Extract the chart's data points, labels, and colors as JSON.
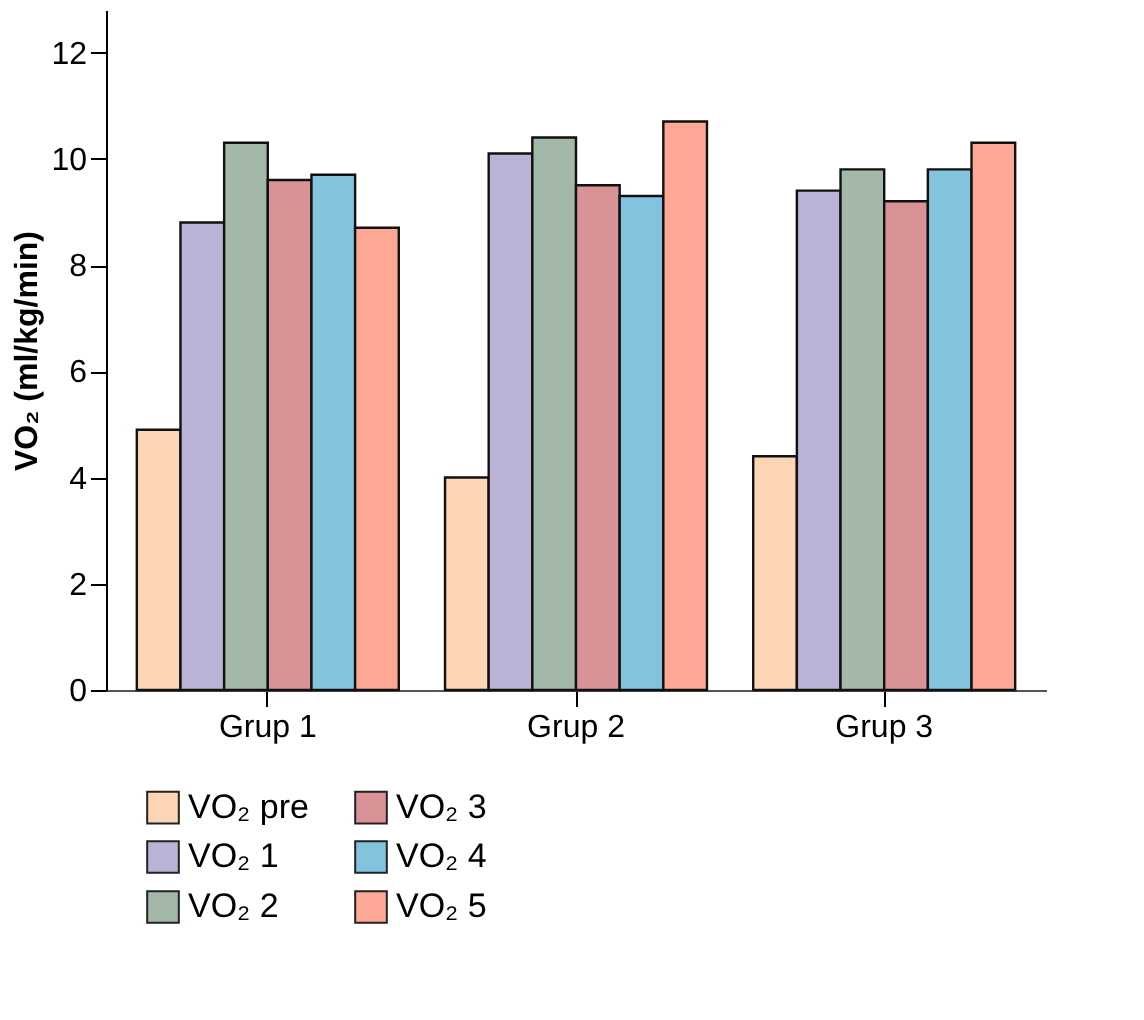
{
  "chart_data": {
    "type": "bar",
    "ylabel": "VO₂ (ml/kg/min)",
    "categories": [
      "Grup 1",
      "Grup 2",
      "Grup 3"
    ],
    "series": [
      {
        "name": "VO₂ pre",
        "color": "#fdd5b5",
        "values": [
          4.9,
          4.0,
          4.4
        ]
      },
      {
        "name": "VO₂ 1",
        "color": "#bab3d6",
        "values": [
          8.8,
          10.1,
          9.4
        ]
      },
      {
        "name": "VO₂ 2",
        "color": "#a3b8a8",
        "values": [
          10.3,
          10.4,
          9.8
        ]
      },
      {
        "name": "VO₂ 3",
        "color": "#d99396",
        "values": [
          9.6,
          9.5,
          9.2
        ]
      },
      {
        "name": "VO₂ 4",
        "color": "#83c3dd",
        "values": [
          9.7,
          9.3,
          9.8
        ]
      },
      {
        "name": "VO₂ 5",
        "color": "#fda894",
        "values": [
          8.7,
          10.7,
          10.3
        ]
      }
    ],
    "ylim": [
      0,
      12.8
    ],
    "yticks": [
      0,
      2,
      4,
      6,
      8,
      10,
      12
    ],
    "grid": false,
    "legend": "bottom left"
  }
}
